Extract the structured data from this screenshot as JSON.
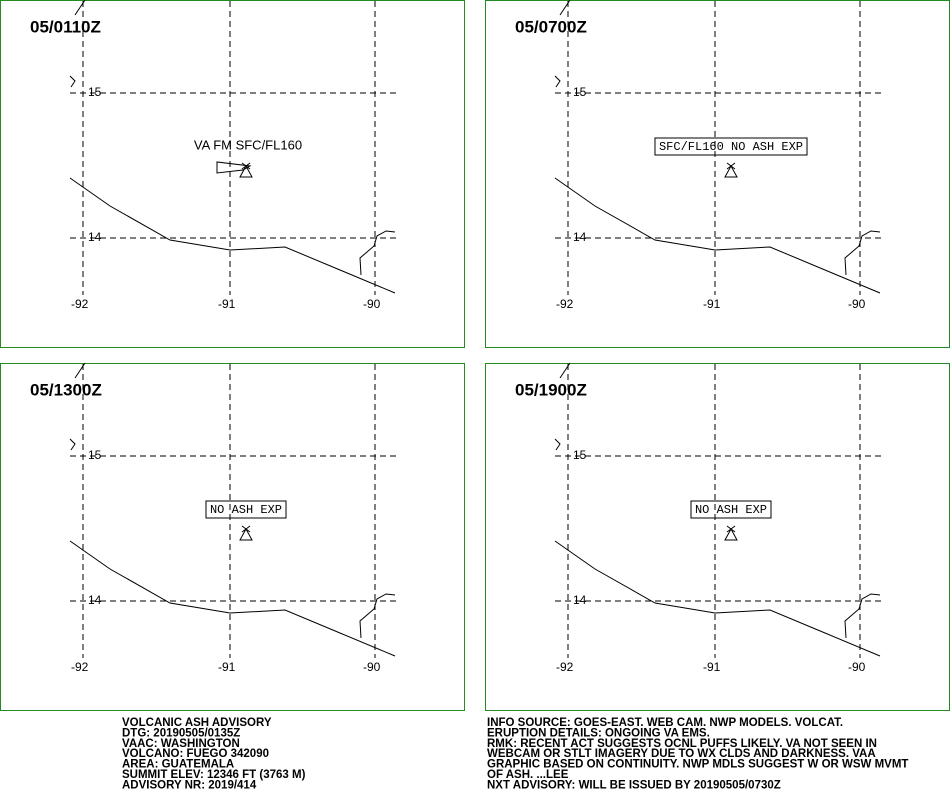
{
  "panels": [
    {
      "time": "05/0110Z",
      "annotation": "VA FM SFC/FL160"
    },
    {
      "time": "05/0700Z",
      "annotation": "SFC/FL160 NO ASH EXP"
    },
    {
      "time": "05/1300Z",
      "annotation": "NO ASH EXP"
    },
    {
      "time": "05/1900Z",
      "annotation": "NO ASH EXP"
    }
  ],
  "grid": {
    "lat": [
      "15",
      "14"
    ],
    "lon": [
      "-92",
      "-91",
      "-90"
    ]
  },
  "info_left": [
    "VOLCANIC ASH ADVISORY",
    "DTG: 20190505/0135Z",
    "VAAC: WASHINGTON",
    "VOLCANO: FUEGO 342090",
    "AREA: GUATEMALA",
    "SUMMIT ELEV: 12346 FT (3763 M)",
    "ADVISORY NR: 2019/414"
  ],
  "info_right": [
    "INFO SOURCE: GOES-EAST. WEB CAM. NWP MODELS. VOLCAT.",
    "ERUPTION DETAILS: ONGOING VA EMS.",
    "RMK: RECENT ACT SUGGESTS OCNL PUFFS LIKELY. VA NOT SEEN IN",
    "WEBCAM OR STLT IMAGERY DUE TO WX CLDS AND DARKNESS. VAA",
    "GRAPHIC BASED ON CONTINUITY. NWP MDLS SUGGEST W OR WSW MVMT",
    "OF ASH. ...LEE",
    "NXT ADVISORY: WILL BE ISSUED BY 20190505/0730Z"
  ]
}
